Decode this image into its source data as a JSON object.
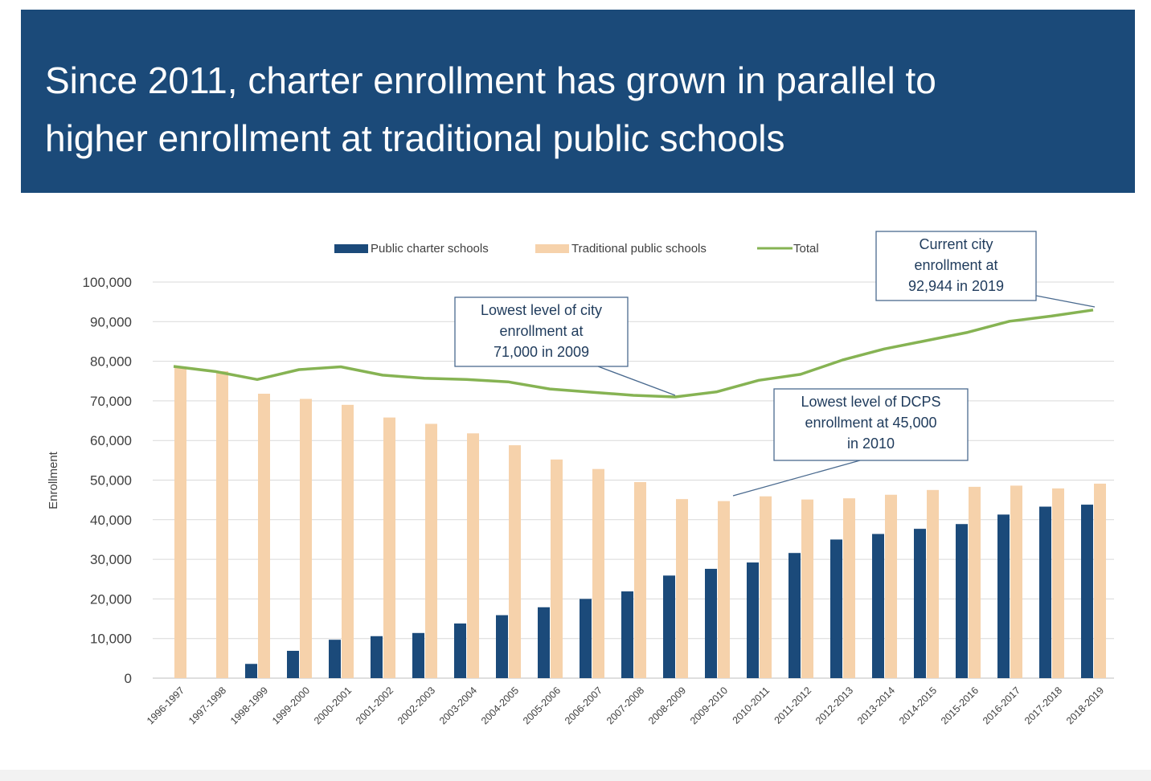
{
  "header": {
    "title_line1": "Since 2011, charter enrollment has grown in parallel to",
    "title_line2": "higher enrollment at traditional public schools"
  },
  "colors": {
    "banner": "#1b4a79",
    "charter": "#1b4a7a",
    "traditional": "#f6d2ab",
    "total": "#86b353",
    "grid": "#d9d9d9",
    "callout_border": "#4a6a8f"
  },
  "chart_data": {
    "type": "bar",
    "title": "",
    "xlabel": "",
    "ylabel": "Enrollment",
    "ylim": [
      0,
      100000
    ],
    "yticks": [
      "0",
      "10,000",
      "20,000",
      "30,000",
      "40,000",
      "50,000",
      "60,000",
      "70,000",
      "80,000",
      "90,000",
      "100,000"
    ],
    "grid": true,
    "legend_position": "top-center",
    "categories": [
      "1996-1997",
      "1997-1998",
      "1998-1999",
      "1999-2000",
      "2000-2001",
      "2001-2002",
      "2002-2003",
      "2003-2004",
      "2004-2005",
      "2005-2006",
      "2006-2007",
      "2007-2008",
      "2008-2009",
      "2009-2010",
      "2010-2011",
      "2011-2012",
      "2012-2013",
      "2013-2014",
      "2014-2015",
      "2015-2016",
      "2016-2017",
      "2017-2018",
      "2018-2019"
    ],
    "series": [
      {
        "name": "Public charter schools",
        "kind": "bar",
        "values": [
          0,
          0,
          3600,
          6900,
          9700,
          10600,
          11400,
          13800,
          15900,
          17900,
          20000,
          21900,
          25900,
          27600,
          29200,
          31600,
          35000,
          36400,
          37700,
          38900,
          41300,
          43300,
          43800
        ]
      },
      {
        "name": "Traditional public schools",
        "kind": "bar",
        "values": [
          78500,
          77500,
          71800,
          70500,
          69000,
          65800,
          64200,
          61800,
          58800,
          55200,
          52800,
          49500,
          45200,
          44700,
          45900,
          45100,
          45400,
          46300,
          47500,
          48300,
          48600,
          47900,
          49100
        ]
      },
      {
        "name": "Total",
        "kind": "line",
        "values": [
          78700,
          77400,
          75400,
          77900,
          78600,
          76500,
          75700,
          75400,
          74800,
          73000,
          72200,
          71400,
          71000,
          72300,
          75200,
          76700,
          80300,
          83100,
          85200,
          87300,
          90100,
          91400,
          92944
        ]
      }
    ],
    "annotations": [
      {
        "lines": [
          "Current city",
          "enrollment at",
          "92,944 in 2019"
        ],
        "category": "2018-2019",
        "series": "Total",
        "value": 92944
      },
      {
        "lines": [
          "Lowest level of city",
          "enrollment at",
          "71,000 in 2009"
        ],
        "category": "2008-2009",
        "series": "Total",
        "value": 71000
      },
      {
        "lines": [
          "Lowest level of DCPS",
          "enrollment at 45,000",
          "in 2010"
        ],
        "category": "2009-2010",
        "series": "Traditional public schools",
        "value": 45000
      }
    ]
  }
}
